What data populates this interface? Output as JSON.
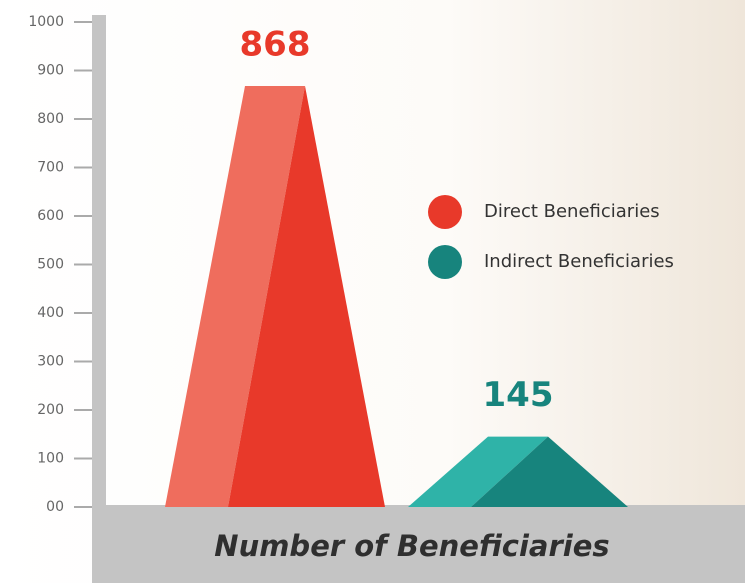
{
  "chart_data": {
    "type": "bar",
    "xlabel": "Number of Beneficiaries",
    "categories": [
      null
    ],
    "series": [
      {
        "name": "Direct Beneficiaries",
        "color": "#e8392a",
        "light": "#ef6d5d",
        "values": [
          868
        ]
      },
      {
        "name": "Indirect Beneficiaries",
        "color": "#17847d",
        "light": "#2fb3a8",
        "values": [
          145
        ]
      }
    ],
    "ylim": [
      0,
      1000
    ],
    "yticks": [
      {
        "value": 0,
        "label": "00"
      },
      100,
      200,
      300,
      400,
      500,
      600,
      700,
      800,
      900,
      1000
    ]
  }
}
